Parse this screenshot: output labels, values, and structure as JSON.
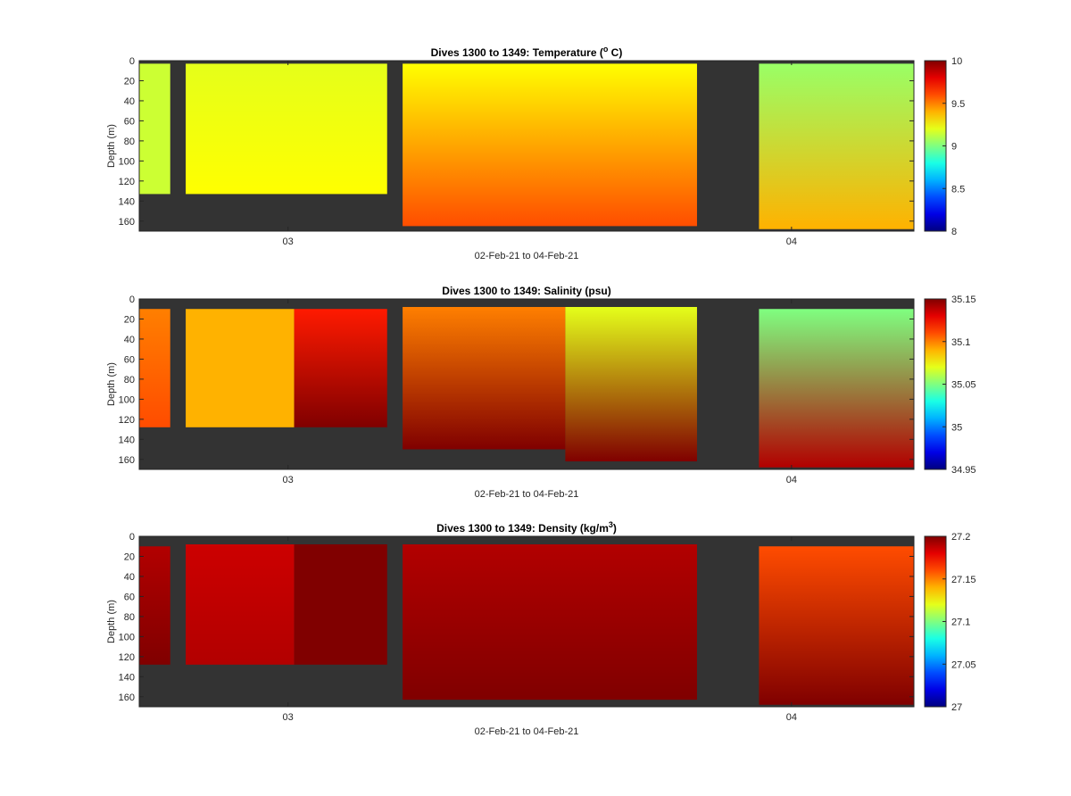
{
  "figure": {
    "background": "#ffffff",
    "nodata_color": "#333333"
  },
  "chart_data": [
    {
      "type": "heatmap",
      "title": "Dives 1300 to 1349: Temperature (",
      "title_super": "o",
      "title_end": " C)",
      "ylabel": "Depth (m)",
      "xlabel": "02-Feb-21 to 04-Feb-21",
      "x_ticks": [
        "03",
        "04"
      ],
      "y_ticks": [
        "0",
        "20",
        "40",
        "60",
        "80",
        "100",
        "120",
        "140",
        "160"
      ],
      "ylim": [
        0,
        170
      ],
      "y_reversed": true,
      "colorbar": {
        "ticks": [
          "8",
          "8.5",
          "9",
          "9.5",
          "10"
        ],
        "range": [
          8,
          10
        ],
        "colormap": "jet"
      },
      "regions": [
        {
          "xrange": [
            0.0,
            0.04
          ],
          "yrange": [
            3,
            133
          ],
          "value_top": 9.15,
          "value_bottom": 9.15
        },
        {
          "xrange": [
            0.06,
            0.32
          ],
          "yrange": [
            3,
            133
          ],
          "value_top": 9.2,
          "value_bottom": 9.25
        },
        {
          "xrange": [
            0.34,
            0.72
          ],
          "yrange": [
            3,
            165
          ],
          "value_top": 9.25,
          "value_bottom": 9.6
        },
        {
          "xrange": [
            0.8,
            1.0
          ],
          "yrange": [
            3,
            168
          ],
          "value_top": 9.05,
          "value_bottom": 9.4
        }
      ]
    },
    {
      "type": "heatmap",
      "title": "Dives 1300 to 1349: Salinity (psu)",
      "title_super": "",
      "title_end": "",
      "ylabel": "Depth (m)",
      "xlabel": "02-Feb-21 to 04-Feb-21",
      "x_ticks": [
        "03",
        "04"
      ],
      "y_ticks": [
        "0",
        "20",
        "40",
        "60",
        "80",
        "100",
        "120",
        "140",
        "160"
      ],
      "ylim": [
        0,
        170
      ],
      "y_reversed": true,
      "colorbar": {
        "ticks": [
          "34.95",
          "35",
          "35.05",
          "35.1",
          "35.15"
        ],
        "range": [
          34.95,
          35.15
        ],
        "colormap": "jet"
      },
      "regions": [
        {
          "xrange": [
            0.0,
            0.04
          ],
          "yrange": [
            10,
            128
          ],
          "value_top": 35.1,
          "value_bottom": 35.11
        },
        {
          "xrange": [
            0.06,
            0.2
          ],
          "yrange": [
            10,
            128
          ],
          "value_top": 35.09,
          "value_bottom": 35.09
        },
        {
          "xrange": [
            0.2,
            0.32
          ],
          "yrange": [
            10,
            128
          ],
          "value_top": 35.12,
          "value_bottom": 35.15
        },
        {
          "xrange": [
            0.34,
            0.55
          ],
          "yrange": [
            8,
            150
          ],
          "value_top": 35.1,
          "value_bottom": 35.15
        },
        {
          "xrange": [
            0.55,
            0.72
          ],
          "yrange": [
            8,
            162
          ],
          "value_top": 35.07,
          "value_bottom": 35.15
        },
        {
          "xrange": [
            0.8,
            1.0
          ],
          "yrange": [
            10,
            168
          ],
          "value_top": 35.05,
          "value_bottom": 35.14
        }
      ]
    },
    {
      "type": "heatmap",
      "title": "Dives 1300 to 1349: Density (kg/m",
      "title_super": "3",
      "title_end": ")",
      "ylabel": "Depth (m)",
      "xlabel": "02-Feb-21 to 04-Feb-21",
      "x_ticks": [
        "03",
        "04"
      ],
      "y_ticks": [
        "0",
        "20",
        "40",
        "60",
        "80",
        "100",
        "120",
        "140",
        "160"
      ],
      "ylim": [
        0,
        170
      ],
      "y_reversed": true,
      "colorbar": {
        "ticks": [
          "27",
          "27.05",
          "27.1",
          "27.15",
          "27.2"
        ],
        "range": [
          27,
          27.2
        ],
        "colormap": "jet"
      },
      "regions": [
        {
          "xrange": [
            0.0,
            0.04
          ],
          "yrange": [
            10,
            128
          ],
          "value_top": 27.19,
          "value_bottom": 27.2
        },
        {
          "xrange": [
            0.06,
            0.2
          ],
          "yrange": [
            8,
            128
          ],
          "value_top": 27.185,
          "value_bottom": 27.19
        },
        {
          "xrange": [
            0.2,
            0.32
          ],
          "yrange": [
            8,
            128
          ],
          "value_top": 27.2,
          "value_bottom": 27.2
        },
        {
          "xrange": [
            0.34,
            0.72
          ],
          "yrange": [
            8,
            163
          ],
          "value_top": 27.19,
          "value_bottom": 27.2
        },
        {
          "xrange": [
            0.8,
            1.0
          ],
          "yrange": [
            10,
            168
          ],
          "value_top": 27.16,
          "value_bottom": 27.2
        }
      ]
    }
  ]
}
